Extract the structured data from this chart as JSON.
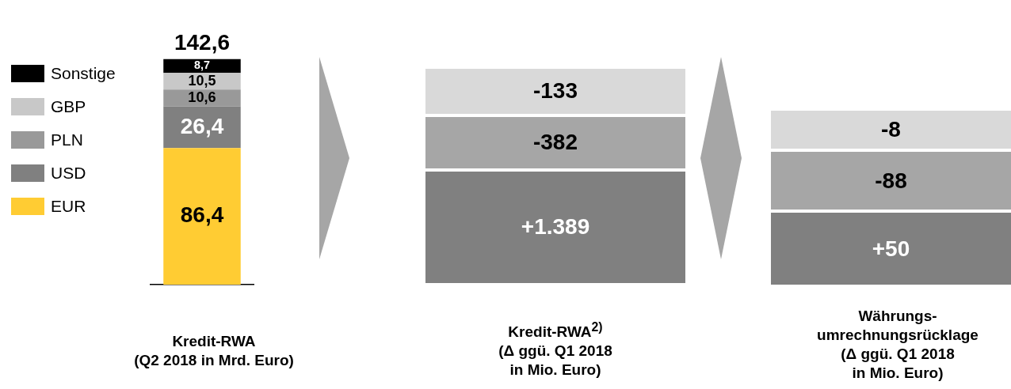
{
  "chart_data": [
    {
      "type": "bar",
      "stacked": true,
      "categories": [
        null
      ],
      "xlabel": "Kredit-RWA\n(Q2 2018 in Mrd. Euro)",
      "grid": false,
      "legend": "left",
      "totals": [
        "142,6"
      ],
      "series": [
        {
          "name": "EUR",
          "color": "#ffcc33",
          "values": [
            86.4
          ],
          "value_labels": [
            "86,4"
          ]
        },
        {
          "name": "USD",
          "color": "#808080",
          "values": [
            26.4
          ],
          "value_labels": [
            "26,4"
          ]
        },
        {
          "name": "PLN",
          "color": "#999999",
          "values": [
            10.6
          ],
          "value_labels": [
            "10,6"
          ]
        },
        {
          "name": "GBP",
          "color": "#c8c8c8",
          "values": [
            10.5
          ],
          "value_labels": [
            "10,5"
          ]
        },
        {
          "name": "Sonstige",
          "color": "#000000",
          "values": [
            8.7
          ],
          "value_labels": [
            "8,7"
          ]
        }
      ]
    },
    {
      "type": "other",
      "categories": [
        null,
        null,
        null
      ],
      "value_labels": [
        "-133",
        "-382",
        "+1.389"
      ],
      "colors": [
        "#d9d9d9",
        "#a6a6a6",
        "#808080"
      ],
      "xlabel": "Kredit-RWA$^{2)}$\n(Δ ggü. Q1 2018\nin Mio. Euro)"
    },
    {
      "type": "other",
      "categories": [
        null,
        null,
        null
      ],
      "value_labels": [
        "-8",
        "-88",
        "+50"
      ],
      "colors": [
        "#d9d9d9",
        "#a6a6a6",
        "#808080"
      ],
      "xlabel": "Währungs-\numrechnungsrücklage\n(Δ ggü. Q1 2018\nin Mio. Euro)"
    }
  ]
}
